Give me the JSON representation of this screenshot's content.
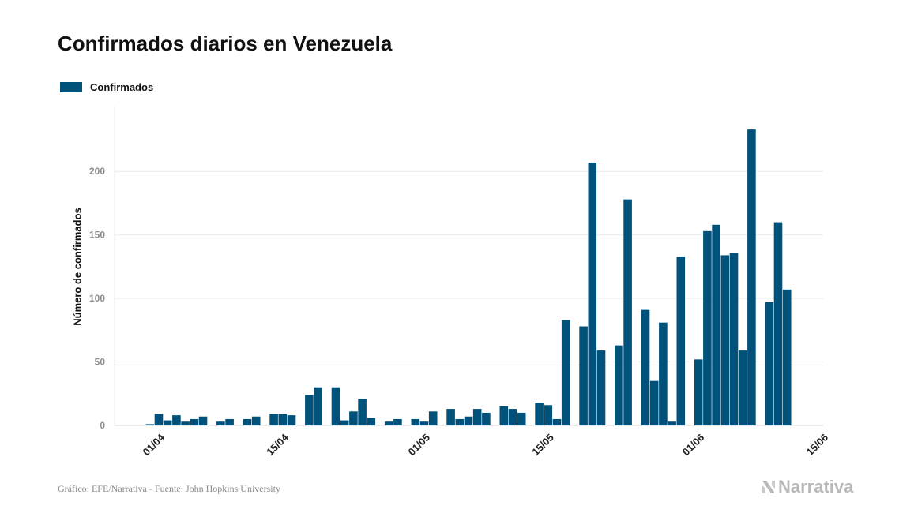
{
  "title": "Confirmados diarios en Venezuela",
  "legend": {
    "label": "Confirmados",
    "color": "#00527a"
  },
  "ylabel": "Número de confirmados",
  "source": "Gráfico: EFE/Narrativa - Fuente: John Hopkins University",
  "brand": {
    "name": "Narrativa",
    "icon": "narrativa-logo-icon"
  },
  "chart_data": {
    "type": "bar",
    "title": "Confirmados diarios en Venezuela",
    "xlabel": "",
    "ylabel": "Número de confirmados",
    "legend_position": "top-left",
    "grid": true,
    "ylim": [
      0,
      245
    ],
    "yticks": [
      0,
      50,
      100,
      150,
      200
    ],
    "x_tick_labels": [
      "01/04",
      "15/04",
      "01/05",
      "15/05",
      "01/06",
      "15/06"
    ],
    "start_date": "31/03",
    "series": [
      {
        "name": "Confirmados",
        "color": "#00527a",
        "values": [
          1,
          9,
          4,
          8,
          3,
          5,
          7,
          0,
          3,
          5,
          0,
          5,
          7,
          0,
          9,
          9,
          8,
          0,
          24,
          30,
          0,
          30,
          4,
          11,
          21,
          6,
          0,
          3,
          5,
          0,
          5,
          3,
          11,
          0,
          13,
          5,
          7,
          13,
          10,
          0,
          15,
          13,
          10,
          0,
          18,
          16,
          5,
          83,
          0,
          78,
          207,
          59,
          0,
          63,
          178,
          0,
          91,
          35,
          81,
          3,
          133,
          0,
          52,
          153,
          158,
          134,
          136,
          59,
          233,
          0,
          97,
          160,
          107
        ]
      }
    ]
  }
}
